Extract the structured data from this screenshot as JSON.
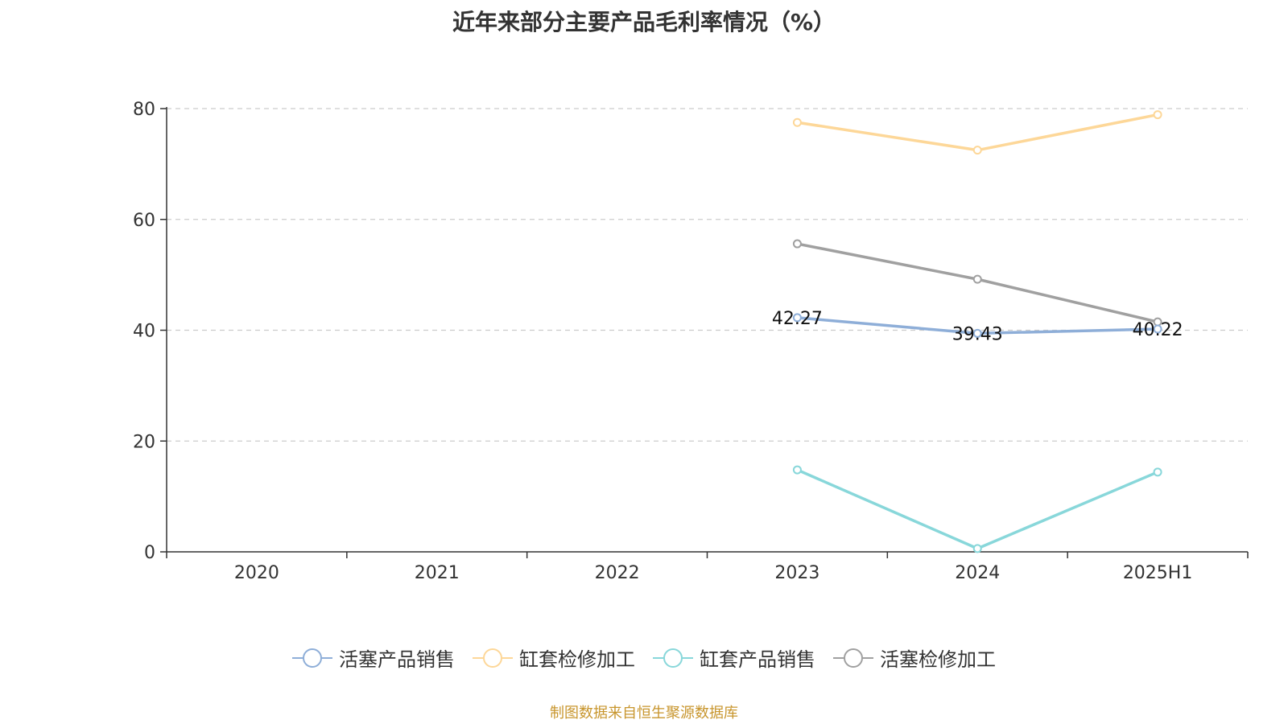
{
  "chart_data": {
    "type": "line",
    "title": "近年来部分主要产品毛利率情况（%）",
    "categories": [
      "2020",
      "2021",
      "2022",
      "2023",
      "2024",
      "2025H1"
    ],
    "ylim": [
      0,
      80
    ],
    "yticks": [
      0,
      20,
      40,
      60,
      80
    ],
    "grid": true,
    "legend_position": "bottom",
    "series": [
      {
        "name": "活塞产品销售",
        "color": "#8eaed8",
        "values": [
          null,
          null,
          null,
          42.27,
          39.43,
          40.22
        ],
        "labels": [
          null,
          null,
          null,
          "42.27",
          "39.43",
          "40.22"
        ]
      },
      {
        "name": "缸套检修加工",
        "color": "#fdd798",
        "values": [
          null,
          null,
          null,
          77.5,
          72.5,
          78.9
        ]
      },
      {
        "name": "缸套产品销售",
        "color": "#88d7da",
        "values": [
          null,
          null,
          null,
          14.8,
          0.6,
          14.4
        ]
      },
      {
        "name": "活塞检修加工",
        "color": "#a0a0a0",
        "values": [
          null,
          null,
          null,
          55.6,
          49.2,
          41.5
        ]
      }
    ]
  },
  "source": {
    "text": "制图数据来自恒生聚源数据库",
    "color": "#c8962e"
  }
}
